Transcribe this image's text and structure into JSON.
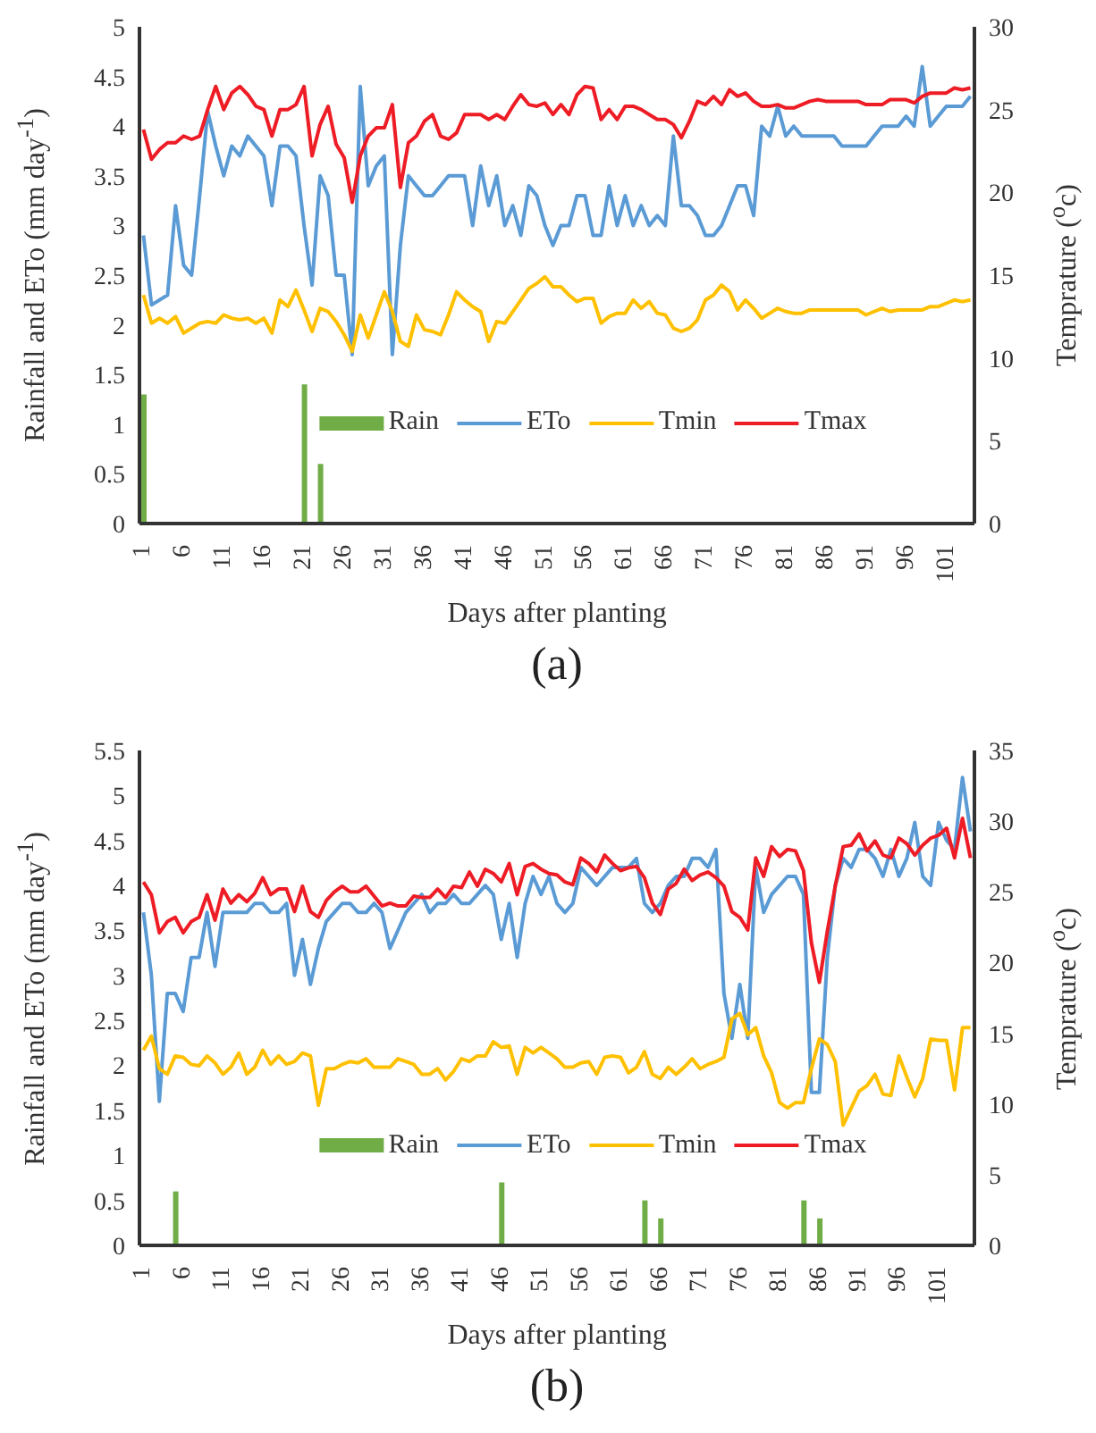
{
  "chart_data": [
    {
      "type": "line",
      "title": "(a)",
      "xlabel": "Days after planting",
      "ylabel": "Rainfall and ETo (mm day$^{-1}$)",
      "y2label": "Temprature ($^{o}$c)",
      "categories": [
        "1",
        null,
        null,
        null,
        null,
        "6",
        null,
        null,
        null,
        null,
        "11",
        null,
        null,
        null,
        null,
        "16",
        null,
        null,
        null,
        null,
        "21",
        null,
        null,
        null,
        null,
        "26",
        null,
        null,
        null,
        null,
        "31",
        null,
        null,
        null,
        null,
        "36",
        null,
        null,
        null,
        null,
        "41",
        null,
        null,
        null,
        null,
        "46",
        null,
        null,
        null,
        null,
        "51",
        null,
        null,
        null,
        null,
        "56",
        null,
        null,
        null,
        null,
        "61",
        null,
        null,
        null,
        null,
        "66",
        null,
        null,
        null,
        null,
        "71",
        null,
        null,
        null,
        null,
        "76",
        null,
        null,
        null,
        null,
        "81",
        null,
        null,
        null,
        null,
        "86",
        null,
        null,
        null,
        null,
        "91",
        null,
        null,
        null,
        null,
        "96",
        null,
        null,
        null,
        null,
        "101",
        null,
        null,
        null
      ],
      "series": [
        {
          "name": "Rain",
          "type": "bar",
          "color": "#70ad47",
          "values": [
            1.3,
            null,
            null,
            null,
            null,
            null,
            null,
            null,
            null,
            null,
            null,
            null,
            null,
            null,
            null,
            null,
            null,
            null,
            null,
            null,
            1.4,
            null,
            0.6,
            null,
            null,
            null,
            null,
            null,
            null,
            null,
            null,
            null,
            null,
            null,
            null,
            null,
            null,
            null,
            null,
            null,
            null,
            null,
            null,
            null,
            null,
            null,
            null,
            null,
            null,
            null,
            null,
            null,
            null,
            null,
            null,
            null,
            null,
            null,
            null,
            null,
            null,
            null,
            null,
            null,
            null,
            null,
            null,
            null,
            null,
            null,
            null,
            null,
            null,
            null,
            null,
            null,
            null,
            null,
            null,
            null,
            null,
            null,
            null,
            null,
            null,
            null,
            null,
            null,
            null,
            null,
            null,
            null,
            null,
            null,
            null,
            null,
            null,
            null,
            null,
            null,
            null,
            null,
            null,
            null
          ]
        },
        {
          "name": "ETo",
          "color": "#5b9bd5",
          "values": [
            2.9,
            2.2,
            2.25,
            2.3,
            3.2,
            2.6,
            2.5,
            3.3,
            4.15,
            3.8,
            3.5,
            3.8,
            3.7,
            3.9,
            3.8,
            3.7,
            3.2,
            3.8,
            3.8,
            3.7,
            3.0,
            2.4,
            3.5,
            3.3,
            2.5,
            2.5,
            1.7,
            4.4,
            3.4,
            3.6,
            3.7,
            1.7,
            2.8,
            3.5,
            3.4,
            3.3,
            3.3,
            3.4,
            3.5,
            3.5,
            3.5,
            3.0,
            3.6,
            3.2,
            3.5,
            3.0,
            3.2,
            2.9,
            3.4,
            3.3,
            3.0,
            2.8,
            3.0,
            3.0,
            3.3,
            3.3,
            2.9,
            2.9,
            3.4,
            3.0,
            3.3,
            3.0,
            3.2,
            3.0,
            3.1,
            3.0,
            3.9,
            3.2,
            3.2,
            3.1,
            2.9,
            2.9,
            3.0,
            3.2,
            3.4,
            3.4,
            3.1,
            4.0,
            3.9,
            4.2,
            3.9,
            4.0,
            3.9,
            3.9,
            3.9,
            3.9,
            3.9,
            3.8,
            3.8,
            3.8,
            3.8,
            3.9,
            4.0,
            4.0,
            4.0,
            4.1,
            4.0,
            4.6,
            4.0,
            4.1,
            4.2,
            4.2,
            4.2,
            4.3
          ]
        },
        {
          "name": "Tmin",
          "color": "#ffc000",
          "axis": "y2",
          "values": [
            13.8,
            12.1,
            12.4,
            12.1,
            12.5,
            11.5,
            11.8,
            12.1,
            12.2,
            12.1,
            12.6,
            12.4,
            12.3,
            12.4,
            12.1,
            12.4,
            11.5,
            13.5,
            13.1,
            14.1,
            12.9,
            11.6,
            13.0,
            12.8,
            12.2,
            11.4,
            10.4,
            12.6,
            11.2,
            12.6,
            14.0,
            12.8,
            11.0,
            10.7,
            12.6,
            11.7,
            11.6,
            11.4,
            12.6,
            14.0,
            13.5,
            13.1,
            12.8,
            11.0,
            12.2,
            12.1,
            12.8,
            13.5,
            14.2,
            14.5,
            14.9,
            14.3,
            14.3,
            13.8,
            13.4,
            13.6,
            13.6,
            12.1,
            12.5,
            12.7,
            12.7,
            13.5,
            13.0,
            13.4,
            12.7,
            12.6,
            11.8,
            11.6,
            11.8,
            12.3,
            13.5,
            13.8,
            14.4,
            14.0,
            12.9,
            13.5,
            13.0,
            12.4,
            12.7,
            13.0,
            12.8,
            12.7,
            12.7,
            12.9,
            12.9,
            12.9,
            12.9,
            12.9,
            12.9,
            12.9,
            12.6,
            12.8,
            13.0,
            12.8,
            12.9,
            12.9,
            12.9,
            12.9,
            13.1,
            13.1,
            13.3,
            13.5,
            13.4,
            13.5
          ]
        },
        {
          "name": "Tmax",
          "color": "#ee1c25",
          "axis": "y2",
          "values": [
            23.8,
            22.0,
            22.6,
            23.0,
            23.0,
            23.4,
            23.2,
            23.4,
            25.0,
            26.4,
            25.0,
            26.0,
            26.4,
            25.9,
            25.2,
            25.0,
            23.4,
            25.0,
            25.0,
            25.3,
            26.4,
            22.2,
            24.1,
            25.2,
            22.9,
            22.1,
            19.4,
            22.2,
            23.4,
            23.9,
            23.9,
            25.3,
            20.3,
            23.0,
            23.4,
            24.3,
            24.7,
            23.4,
            23.2,
            23.6,
            24.7,
            24.7,
            24.7,
            24.4,
            24.7,
            24.4,
            25.2,
            25.9,
            25.3,
            25.2,
            25.4,
            24.7,
            25.3,
            24.7,
            25.9,
            26.4,
            26.3,
            24.4,
            25.0,
            24.4,
            25.2,
            25.2,
            25.0,
            24.7,
            24.4,
            24.4,
            24.1,
            23.3,
            24.3,
            25.5,
            25.3,
            25.8,
            25.3,
            26.2,
            25.8,
            26.0,
            25.5,
            25.2,
            25.2,
            25.3,
            25.1,
            25.1,
            25.3,
            25.5,
            25.6,
            25.5,
            25.5,
            25.5,
            25.5,
            25.5,
            25.3,
            25.3,
            25.3,
            25.6,
            25.6,
            25.6,
            25.4,
            25.8,
            26.0,
            26.0,
            26.0,
            26.3,
            26.2,
            26.3
          ]
        }
      ],
      "ylim": [
        0,
        5
      ],
      "yticks": [
        0,
        0.5,
        1,
        1.5,
        2,
        2.5,
        3,
        3.5,
        4,
        4.5,
        5
      ],
      "y2lim": [
        0,
        30
      ],
      "y2ticks": [
        0,
        5,
        10,
        15,
        20,
        25,
        30
      ],
      "legend": "bottom",
      "grid": false,
      "marker": "none",
      "line_style": "solid"
    },
    {
      "type": "line",
      "title": "(b)",
      "xlabel": "Days after planting",
      "ylabel": "Rainfall and ETo (mm day$^{-1}$)",
      "y2label": "Temprature ($^{o}$c)",
      "categories": [
        "1",
        null,
        null,
        null,
        null,
        "6",
        null,
        null,
        null,
        null,
        "11",
        null,
        null,
        null,
        null,
        "16",
        null,
        null,
        null,
        null,
        "21",
        null,
        null,
        null,
        null,
        "26",
        null,
        null,
        null,
        null,
        "31",
        null,
        null,
        null,
        null,
        "36",
        null,
        null,
        null,
        null,
        "41",
        null,
        null,
        null,
        null,
        "46",
        null,
        null,
        null,
        null,
        "51",
        null,
        null,
        null,
        null,
        "56",
        null,
        null,
        null,
        null,
        "61",
        null,
        null,
        null,
        null,
        "66",
        null,
        null,
        null,
        null,
        "71",
        null,
        null,
        null,
        null,
        "76",
        null,
        null,
        null,
        null,
        "81",
        null,
        null,
        null,
        null,
        "86",
        null,
        null,
        null,
        null,
        "91",
        null,
        null,
        null,
        null,
        "96",
        null,
        null,
        null,
        null,
        "101",
        null,
        null,
        null,
        null
      ],
      "series": [
        {
          "name": "Rain",
          "type": "bar",
          "color": "#70ad47",
          "values": [
            null,
            null,
            null,
            null,
            0.6,
            null,
            null,
            null,
            null,
            null,
            null,
            null,
            null,
            null,
            null,
            null,
            null,
            null,
            null,
            null,
            null,
            null,
            null,
            null,
            null,
            null,
            null,
            null,
            null,
            null,
            null,
            null,
            null,
            null,
            null,
            null,
            null,
            null,
            null,
            null,
            null,
            null,
            null,
            null,
            null,
            0.7,
            null,
            null,
            null,
            null,
            null,
            null,
            null,
            null,
            null,
            null,
            null,
            null,
            null,
            null,
            null,
            null,
            null,
            0.5,
            null,
            0.3,
            null,
            null,
            null,
            null,
            null,
            null,
            null,
            null,
            null,
            null,
            null,
            null,
            null,
            null,
            null,
            null,
            null,
            0.5,
            null,
            0.3,
            null,
            null,
            null,
            null,
            null,
            null,
            null,
            null,
            null,
            null,
            null,
            null,
            null,
            null,
            null,
            null,
            null,
            null,
            null
          ]
        },
        {
          "name": "ETo",
          "color": "#5b9bd5",
          "values": [
            3.7,
            3.0,
            1.6,
            2.8,
            2.8,
            2.6,
            3.2,
            3.2,
            3.7,
            3.1,
            3.7,
            3.7,
            3.7,
            3.7,
            3.8,
            3.8,
            3.7,
            3.7,
            3.8,
            3.0,
            3.4,
            2.9,
            3.3,
            3.6,
            3.7,
            3.8,
            3.8,
            3.7,
            3.7,
            3.8,
            3.7,
            3.3,
            3.5,
            3.7,
            3.8,
            3.9,
            3.7,
            3.8,
            3.8,
            3.9,
            3.8,
            3.8,
            3.9,
            4.0,
            3.9,
            3.4,
            3.8,
            3.2,
            3.8,
            4.1,
            3.9,
            4.1,
            3.8,
            3.7,
            3.8,
            4.2,
            4.1,
            4.0,
            4.1,
            4.2,
            4.2,
            4.2,
            4.3,
            3.8,
            3.7,
            3.8,
            4.0,
            4.1,
            4.1,
            4.3,
            4.3,
            4.2,
            4.4,
            2.8,
            2.3,
            2.9,
            2.3,
            4.2,
            3.7,
            3.9,
            4.0,
            4.1,
            4.1,
            3.9,
            1.7,
            1.7,
            3.2,
            4.0,
            4.3,
            4.2,
            4.4,
            4.4,
            4.3,
            4.1,
            4.4,
            4.1,
            4.3,
            4.7,
            4.1,
            4.0,
            4.7,
            4.5,
            4.4,
            5.2,
            4.6
          ]
        },
        {
          "name": "Tmin",
          "color": "#ffc000",
          "axis": "y2",
          "values": [
            13.8,
            14.8,
            12.5,
            12.1,
            13.4,
            13.3,
            12.8,
            12.7,
            13.4,
            12.9,
            12.1,
            12.6,
            13.6,
            12.1,
            12.6,
            13.8,
            12.8,
            13.4,
            12.8,
            13.0,
            13.6,
            13.4,
            9.9,
            12.5,
            12.5,
            12.8,
            13.0,
            12.9,
            13.2,
            12.6,
            12.6,
            12.6,
            13.2,
            13.0,
            12.8,
            12.1,
            12.1,
            12.5,
            11.7,
            12.3,
            13.2,
            13.0,
            13.4,
            13.4,
            14.4,
            14.0,
            14.1,
            12.1,
            14.0,
            13.6,
            14.0,
            13.6,
            13.2,
            12.6,
            12.6,
            12.9,
            13.0,
            12.1,
            13.3,
            13.4,
            13.3,
            12.2,
            12.6,
            13.7,
            12.1,
            11.8,
            12.6,
            12.1,
            12.6,
            13.2,
            12.5,
            12.8,
            13.0,
            13.3,
            16.0,
            16.4,
            14.9,
            15.4,
            13.4,
            12.2,
            10.1,
            9.7,
            10.1,
            10.1,
            12.5,
            14.6,
            14.2,
            13.0,
            8.5,
            9.7,
            10.9,
            11.3,
            12.1,
            10.7,
            10.6,
            13.4,
            11.9,
            10.5,
            11.8,
            14.6,
            14.5,
            14.5,
            11.0,
            15.4,
            15.4
          ]
        },
        {
          "name": "Tmax",
          "color": "#ee1c25",
          "axis": "y2",
          "values": [
            25.7,
            24.8,
            22.1,
            22.9,
            23.2,
            22.1,
            22.9,
            23.2,
            24.8,
            23.0,
            25.2,
            24.2,
            24.8,
            24.3,
            24.9,
            26.0,
            24.8,
            25.2,
            25.2,
            23.6,
            25.4,
            23.6,
            23.2,
            24.4,
            25.0,
            25.4,
            25.0,
            25.0,
            25.4,
            24.7,
            24.0,
            24.2,
            24.0,
            24.0,
            24.7,
            24.6,
            24.6,
            25.2,
            24.6,
            25.4,
            25.3,
            26.4,
            25.4,
            26.6,
            26.3,
            25.7,
            27.0,
            24.8,
            26.8,
            27.0,
            26.6,
            26.3,
            26.2,
            25.7,
            25.5,
            27.4,
            27.0,
            26.4,
            27.6,
            27.0,
            26.5,
            26.7,
            26.8,
            26.0,
            24.2,
            23.4,
            25.2,
            25.6,
            26.6,
            25.8,
            26.2,
            26.4,
            26.0,
            25.4,
            23.6,
            23.2,
            22.3,
            27.4,
            26.1,
            28.2,
            27.5,
            28.0,
            27.9,
            26.5,
            21.4,
            18.6,
            22.2,
            25.4,
            28.2,
            28.3,
            29.1,
            27.9,
            28.6,
            27.6,
            27.4,
            28.8,
            28.4,
            27.6,
            28.3,
            28.8,
            29.0,
            29.5,
            27.4,
            30.2,
            27.4
          ]
        }
      ],
      "ylim": [
        0,
        5.5
      ],
      "yticks": [
        0,
        0.5,
        1,
        1.5,
        2,
        2.5,
        3,
        3.5,
        4,
        4.5,
        5,
        5.5
      ],
      "y2lim": [
        0,
        35
      ],
      "y2ticks": [
        0,
        5,
        10,
        15,
        20,
        25,
        30,
        35
      ],
      "legend": "bottom",
      "grid": false,
      "marker": "none",
      "line_style": "solid"
    }
  ]
}
